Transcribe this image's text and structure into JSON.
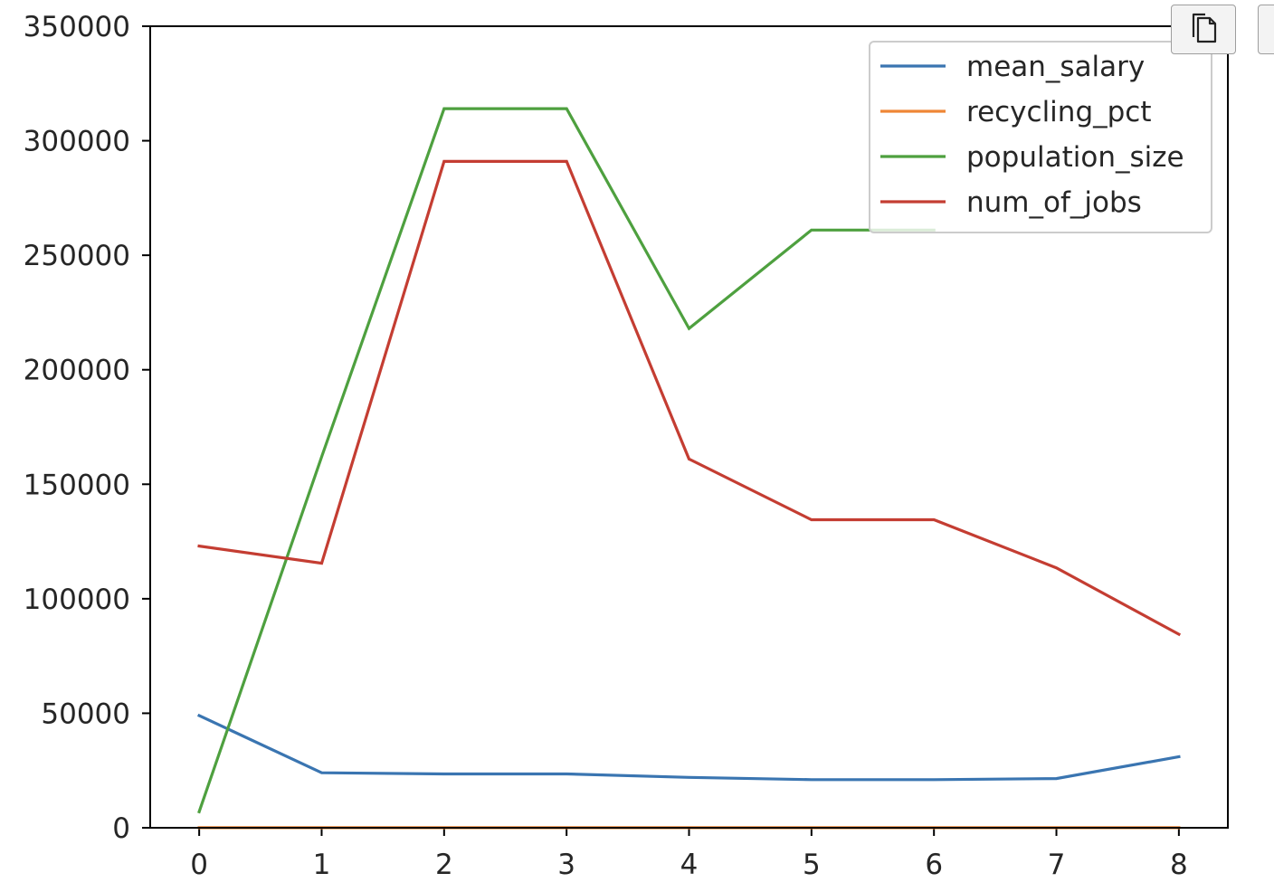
{
  "toolbar": {
    "copy_icon": "copy-icon",
    "extra_button_icon": "blank"
  },
  "chart_data": {
    "type": "line",
    "x": [
      0,
      1,
      2,
      3,
      4,
      5,
      6,
      7,
      8
    ],
    "xticks": [
      "0",
      "1",
      "2",
      "3",
      "4",
      "5",
      "6",
      "7",
      "8"
    ],
    "yticks": [
      "0",
      "50000",
      "100000",
      "150000",
      "200000",
      "250000",
      "300000",
      "350000"
    ],
    "ylim": [
      0,
      350000
    ],
    "xlim": [
      -0.4,
      8.4
    ],
    "grid": false,
    "legend_position": "top-right",
    "series": [
      {
        "name": "mean_salary",
        "color": "#3a75b1",
        "values": [
          49000,
          24000,
          23500,
          23500,
          22000,
          21000,
          21000,
          21500,
          31000
        ]
      },
      {
        "name": "recycling_pct",
        "color": "#ef8636",
        "values": [
          25,
          30,
          28,
          28,
          26,
          24,
          24,
          25,
          28
        ]
      },
      {
        "name": "population_size",
        "color": "#4ea03f",
        "values": [
          7000,
          162000,
          314000,
          314000,
          218000,
          261000,
          261000,
          null,
          null
        ]
      },
      {
        "name": "num_of_jobs",
        "color": "#c43d32",
        "values": [
          123000,
          115500,
          291000,
          291000,
          161000,
          134500,
          134500,
          113500,
          84500
        ]
      }
    ]
  }
}
